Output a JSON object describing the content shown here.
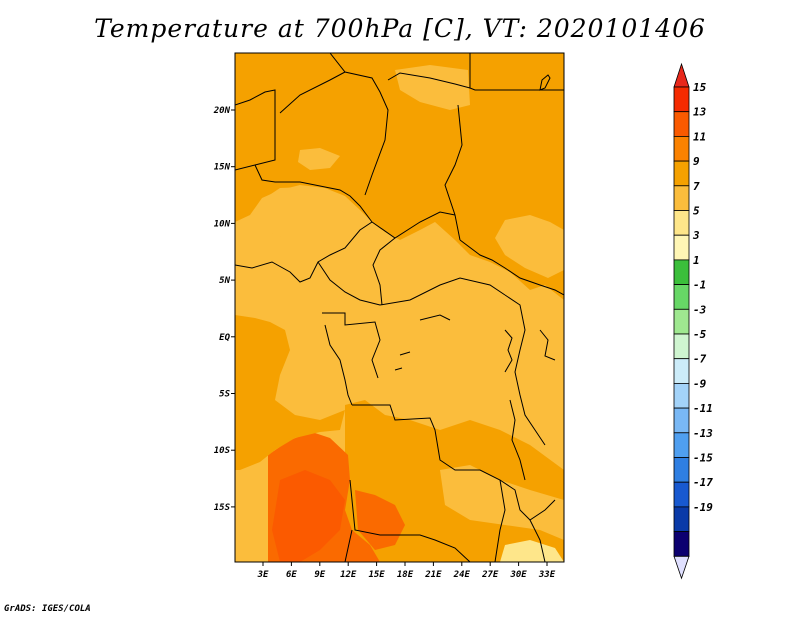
{
  "title": "Temperature at 700hPa [C], VT: 2020101406",
  "credit": "GrADS: IGES/COLA",
  "map": {
    "lat_labels": [
      "20N",
      "15N",
      "10N",
      "5N",
      "EQ",
      "5S",
      "10S",
      "15S"
    ],
    "lon_labels": [
      "3E",
      "6E",
      "9E",
      "12E",
      "15E",
      "18E",
      "21E",
      "24E",
      "27E",
      "30E",
      "33E"
    ],
    "regions": [
      {
        "name": "sahel-north",
        "color": "#f5a100"
      },
      {
        "name": "central-plateau",
        "color": "#fbbd3c"
      },
      {
        "name": "angola-hot-zone",
        "color": "#fa6a00"
      },
      {
        "name": "angola-core",
        "color": "#fb5a00"
      }
    ]
  },
  "colorbar": {
    "labels": [
      "15",
      "13",
      "11",
      "9",
      "7",
      "5",
      "3",
      "1",
      "-1",
      "-3",
      "-5",
      "-7",
      "-9",
      "-11",
      "-13",
      "-15",
      "-17",
      "-19"
    ],
    "colors": [
      "#f52b00",
      "#fa5a00",
      "#fb8200",
      "#f5a100",
      "#fbbd3c",
      "#fee68a",
      "#fff6b5",
      "#3bbf3b",
      "#67d766",
      "#9fe890",
      "#cff5d0",
      "#ccecf9",
      "#a3d3f9",
      "#79b8f5",
      "#4f9ff0",
      "#2f7fe2",
      "#1859d0",
      "#0a3aa8",
      "#0c0070"
    ],
    "top_arrow_color": "#e8281b",
    "bottom_arrow_color": "#e0e0ff"
  }
}
